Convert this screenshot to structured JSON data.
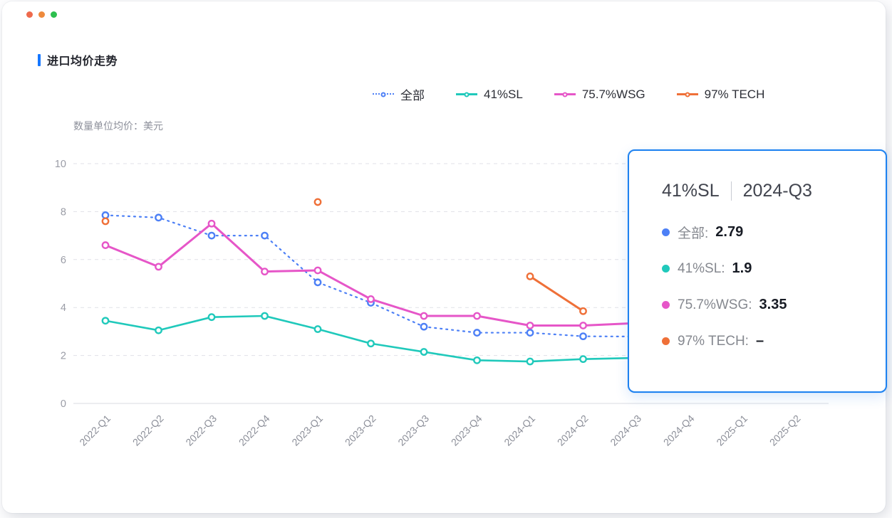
{
  "window": {
    "controls": [
      {
        "name": "dot-1",
        "color": "#ee6a4c"
      },
      {
        "name": "dot-2",
        "color": "#ee8a3c"
      },
      {
        "name": "dot-3",
        "color": "#2dbf4e"
      }
    ]
  },
  "header": {
    "title": "进口均价走势",
    "accent_color": "#1677ff"
  },
  "chart": {
    "unit_label": "数量单位均价：美元"
  },
  "chart_data": {
    "type": "line",
    "title": "进口均价走势",
    "ylabel": "数量单位均价：美元",
    "xlabel": "",
    "ylim": [
      0,
      10
    ],
    "yticks": [
      0,
      2,
      4,
      6,
      8,
      10
    ],
    "grid": "horizontal-dashed",
    "legend_position": "top",
    "categories": [
      "2022-Q1",
      "2022-Q2",
      "2022-Q3",
      "2022-Q4",
      "2023-Q1",
      "2023-Q2",
      "2023-Q3",
      "2023-Q4",
      "2024-Q1",
      "2024-Q2",
      "2024-Q3",
      "2024-Q4",
      "2025-Q1",
      "2025-Q2"
    ],
    "series": [
      {
        "name": "全部",
        "color": "#4d80f6",
        "line_style": "dotted",
        "line_width": 2.2,
        "values": [
          7.85,
          7.75,
          7.0,
          7.0,
          5.05,
          4.2,
          3.2,
          2.95,
          2.95,
          2.8,
          2.79,
          null,
          null,
          null
        ]
      },
      {
        "name": "41%SL",
        "color": "#20c9bb",
        "line_style": "solid",
        "line_width": 2.6,
        "values": [
          3.45,
          3.05,
          3.6,
          3.65,
          3.1,
          2.5,
          2.15,
          1.8,
          1.75,
          1.85,
          1.9,
          null,
          null,
          null
        ]
      },
      {
        "name": "75.7%WSG",
        "color": "#e656c8",
        "line_style": "solid",
        "line_width": 3,
        "values": [
          6.6,
          5.7,
          7.5,
          5.5,
          5.55,
          4.35,
          3.65,
          3.65,
          3.25,
          3.25,
          3.35,
          null,
          null,
          null
        ]
      },
      {
        "name": "97% TECH",
        "color": "#ef7038",
        "line_style": "solid",
        "line_width": 3,
        "values": [
          7.6,
          null,
          null,
          null,
          8.4,
          null,
          null,
          null,
          5.3,
          3.85,
          null,
          null,
          null,
          null
        ]
      }
    ]
  },
  "tooltip": {
    "series_name": "41%SL",
    "period": "2024-Q3",
    "border_color": "#1e82f0",
    "rows": [
      {
        "label": "全部:",
        "value": "2.79",
        "color": "#4d80f6"
      },
      {
        "label": "41%SL:",
        "value": "1.9",
        "color": "#20c9bb"
      },
      {
        "label": "75.7%WSG:",
        "value": "3.35",
        "color": "#e656c8"
      },
      {
        "label": "97% TECH:",
        "value": "–",
        "color": "#ef7038"
      }
    ]
  }
}
